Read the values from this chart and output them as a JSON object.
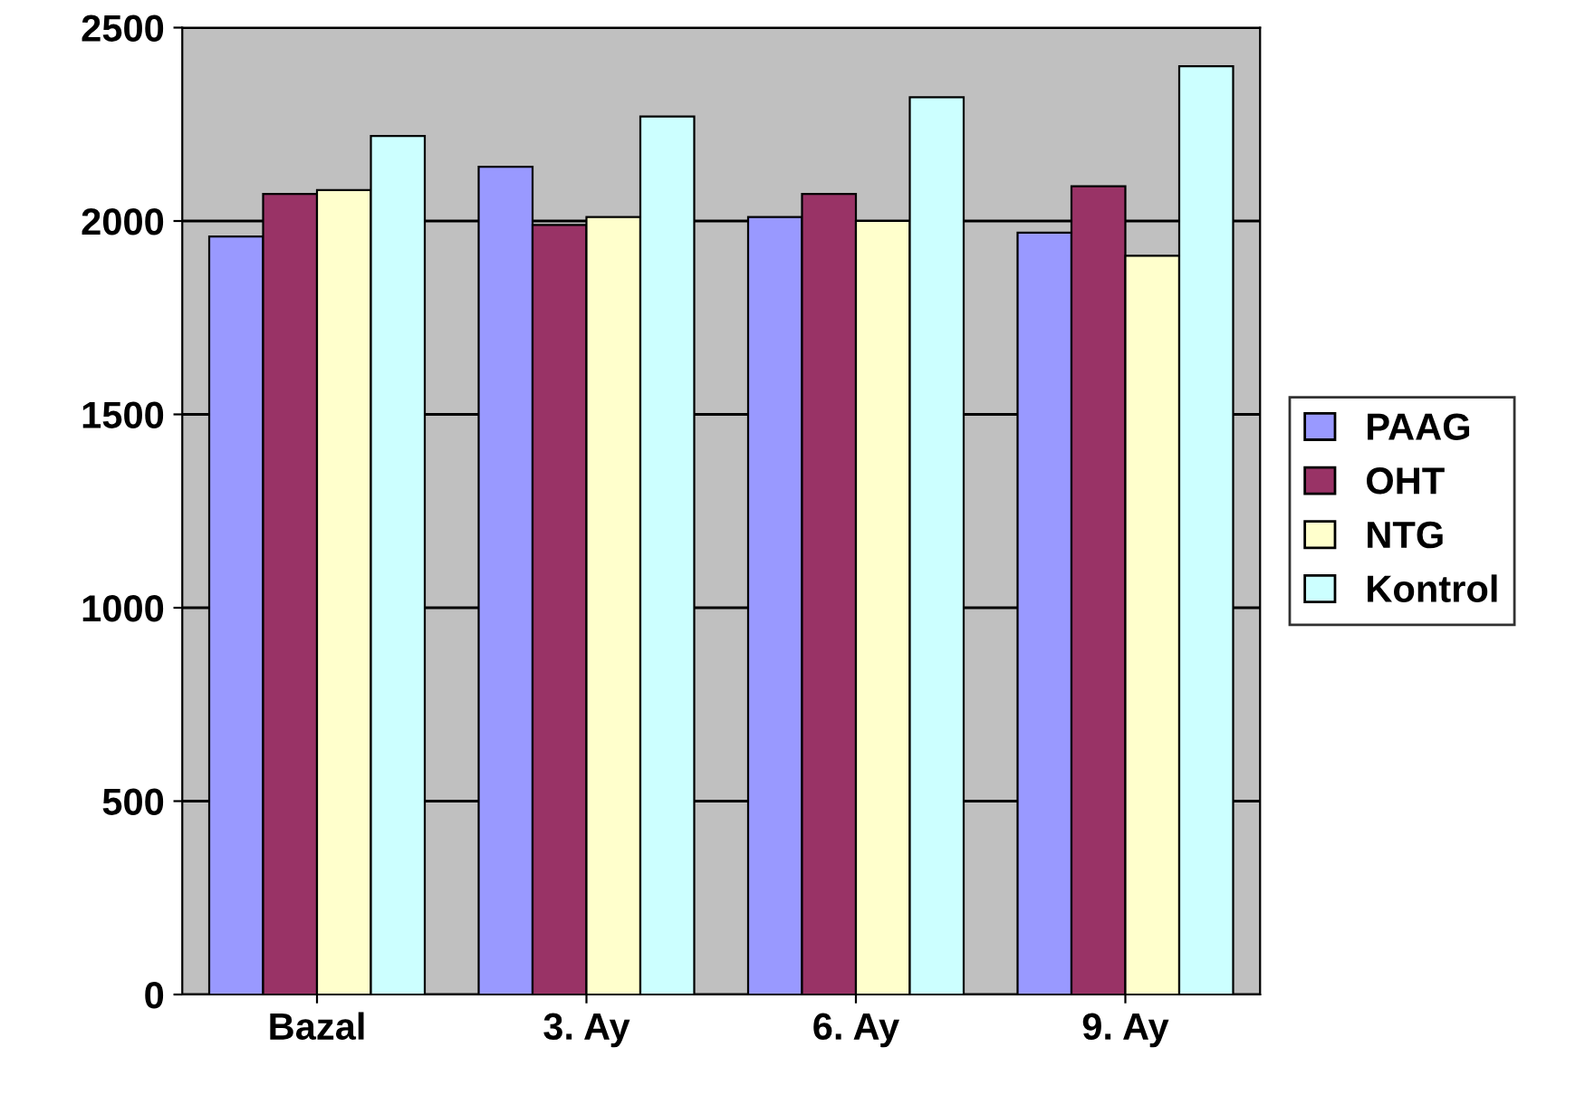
{
  "chart_data": {
    "type": "bar",
    "categories": [
      "Bazal",
      "3. Ay",
      "6. Ay",
      "9. Ay"
    ],
    "series": [
      {
        "name": "PAAG",
        "color": "#9999ff",
        "values": [
          1960,
          2140,
          2010,
          1970
        ]
      },
      {
        "name": "OHT",
        "color": "#993366",
        "values": [
          2070,
          1990,
          2070,
          2090
        ]
      },
      {
        "name": "NTG",
        "color": "#ffffcc",
        "values": [
          2080,
          2010,
          2000,
          1910
        ]
      },
      {
        "name": "Kontrol",
        "color": "#ccffff",
        "values": [
          2220,
          2270,
          2320,
          2400
        ]
      }
    ],
    "ylim": [
      0,
      2500
    ],
    "yticks": [
      0,
      500,
      1000,
      1500,
      2000,
      2500
    ],
    "grid": "y",
    "legend": "right"
  }
}
